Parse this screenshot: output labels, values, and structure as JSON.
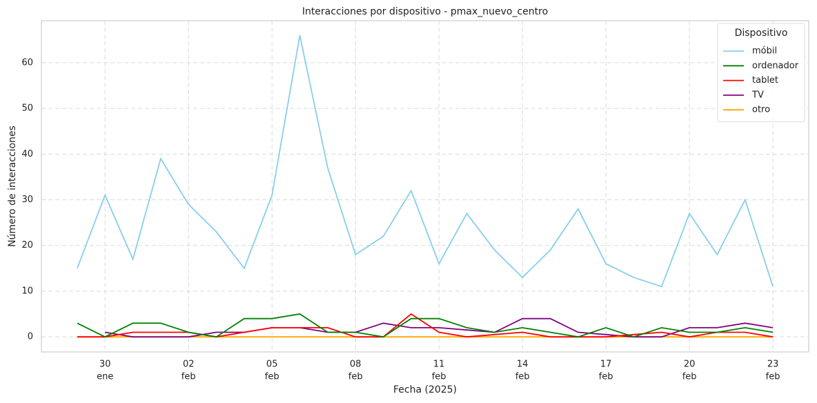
{
  "chart_data": {
    "type": "line",
    "title": "Interacciones por dispositivo - pmax_nuevo_centro",
    "x_label": "Fecha (2025)",
    "y_label": "Número de interacciones",
    "categories": [
      null,
      [
        "30",
        "ene"
      ],
      null,
      null,
      [
        "02",
        "feb"
      ],
      null,
      null,
      [
        "05",
        "feb"
      ],
      null,
      null,
      [
        "08",
        "feb"
      ],
      null,
      null,
      [
        "11",
        "feb"
      ],
      null,
      null,
      [
        "14",
        "feb"
      ],
      null,
      null,
      [
        "17",
        "feb"
      ],
      null,
      null,
      [
        "20",
        "feb"
      ],
      null,
      null,
      [
        "23",
        "feb"
      ]
    ],
    "series": [
      {
        "name": "móbil",
        "color": "#87ceeb",
        "values": [
          15,
          31,
          17,
          39,
          29,
          23,
          15,
          31,
          66,
          37,
          18,
          22,
          32,
          16,
          27,
          19,
          13,
          19,
          28,
          16,
          13,
          11,
          27,
          18,
          30,
          11
        ]
      },
      {
        "name": "ordenador",
        "color": "#008000",
        "values": [
          3,
          0,
          3,
          3,
          1,
          0,
          4,
          4,
          5,
          1,
          1,
          0,
          4,
          4,
          2,
          1,
          2,
          1,
          0,
          2,
          0,
          2,
          1,
          1,
          2,
          1
        ]
      },
      {
        "name": "tablet",
        "color": "#ff0000",
        "values": [
          0,
          0,
          1,
          1,
          1,
          0,
          1,
          2,
          2,
          2,
          0,
          0,
          5,
          1,
          0,
          0.5,
          1,
          0,
          0,
          0,
          0.5,
          1,
          0,
          1,
          1,
          0
        ]
      },
      {
        "name": "TV",
        "color": "#800080",
        "values": [
          null,
          1,
          0,
          0,
          0,
          1,
          1,
          2,
          2,
          1,
          1,
          3,
          2,
          2,
          1.5,
          1,
          4,
          4,
          1,
          0.5,
          0,
          0,
          2,
          2,
          3,
          2
        ]
      },
      {
        "name": "otro",
        "color": "#ffa500",
        "values": [
          0,
          0,
          0,
          0,
          0,
          0,
          0,
          0,
          0,
          0,
          0,
          0,
          0,
          0,
          0,
          0,
          0,
          0,
          0,
          0,
          0,
          0,
          0,
          0,
          0,
          0
        ]
      }
    ],
    "ylim": [
      -3.3,
      69.2
    ],
    "yticks": [
      0,
      10,
      20,
      30,
      40,
      50,
      60
    ],
    "grid": true,
    "legend_title": "Dispositivo",
    "legend": "upper right"
  }
}
